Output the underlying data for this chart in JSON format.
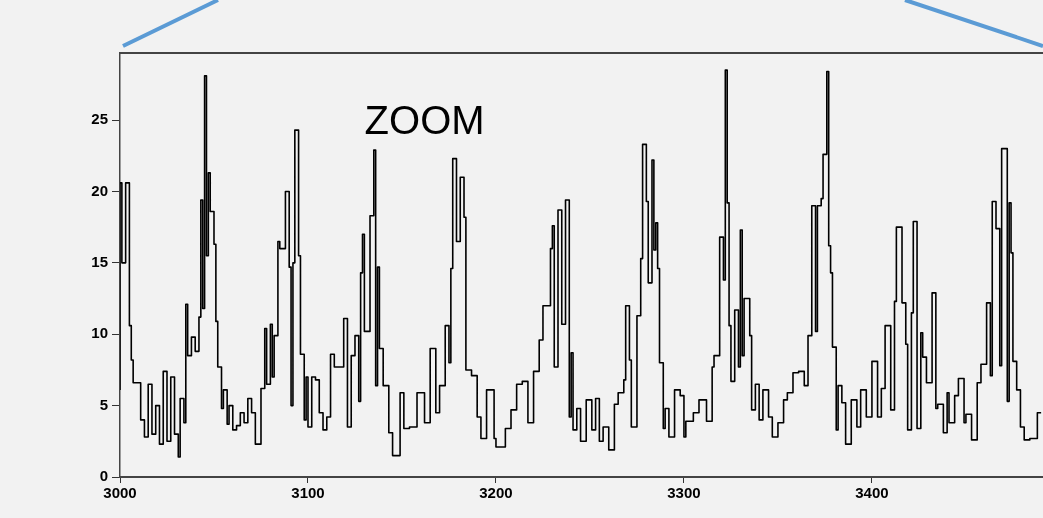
{
  "chart_data": {
    "type": "step",
    "color": "#000000",
    "grid": false,
    "legend": false,
    "xlim": [
      3000,
      3491
    ],
    "xticks": [
      3000,
      3100,
      3200,
      3300,
      3400
    ],
    "ylim": [
      0,
      29.7
    ],
    "yticks": [
      0,
      5,
      10,
      15,
      20,
      25
    ],
    "annotations": [
      "ZOOM"
    ],
    "x": [
      3000,
      3001,
      3003,
      3005,
      3006,
      3007,
      3009,
      3011,
      3013,
      3015,
      3017,
      3019,
      3021,
      3023,
      3025,
      3027,
      3029,
      3031,
      3032,
      3034,
      3035,
      3036,
      3038,
      3040,
      3042,
      3043,
      3044,
      3045,
      3046,
      3047,
      3048,
      3050,
      3051,
      3052,
      3054,
      3055,
      3057,
      3058,
      3060,
      3062,
      3064,
      3066,
      3068,
      3070,
      3072,
      3074,
      3075,
      3077,
      3078,
      3080,
      3081,
      3082,
      3084,
      3085,
      3088,
      3090,
      3091,
      3092,
      3093,
      3095,
      3096,
      3098,
      3099,
      3100,
      3102,
      3104,
      3106,
      3108,
      3110,
      3112,
      3114,
      3119,
      3121,
      3123,
      3125,
      3127,
      3128,
      3129,
      3130,
      3133,
      3135,
      3136,
      3137,
      3138,
      3140,
      3143,
      3145,
      3149,
      3151,
      3154,
      3158,
      3162,
      3165,
      3168,
      3170,
      3173,
      3175,
      3176,
      3177,
      3179,
      3181,
      3183,
      3184,
      3187,
      3190,
      3192,
      3195,
      3199,
      3200,
      3205,
      3208,
      3211,
      3214,
      3217,
      3220,
      3223,
      3225,
      3229,
      3230,
      3231,
      3233,
      3235,
      3237,
      3239,
      3240,
      3241,
      3243,
      3245,
      3248,
      3251,
      3253,
      3255,
      3257,
      3260,
      3263,
      3265,
      3268,
      3269,
      3271,
      3272,
      3275,
      3277,
      3278,
      3280,
      3281,
      3283,
      3284,
      3285,
      3286,
      3287,
      3289,
      3290,
      3292,
      3295,
      3298,
      3300,
      3301,
      3305,
      3308,
      3312,
      3315,
      3316,
      3319,
      3321,
      3322,
      3323,
      3324,
      3325,
      3327,
      3329,
      3330,
      3331,
      3332,
      3335,
      3336,
      3338,
      3340,
      3342,
      3345,
      3347,
      3350,
      3353,
      3355,
      3358,
      3361,
      3364,
      3366,
      3368,
      3370,
      3371,
      3373,
      3374,
      3376,
      3377,
      3378,
      3379,
      3381,
      3382,
      3384,
      3386,
      3389,
      3392,
      3394,
      3397,
      3400,
      3403,
      3405,
      3407,
      3410,
      3412,
      3413,
      3416,
      3418,
      3419,
      3421,
      3422,
      3424,
      3426,
      3427,
      3429,
      3432,
      3434,
      3435,
      3438,
      3440,
      3441,
      3444,
      3446,
      3449,
      3450,
      3453,
      3456,
      3458,
      3461,
      3463,
      3464,
      3466,
      3468,
      3469,
      3472,
      3473,
      3474,
      3475,
      3477,
      3479,
      3481,
      3484,
      3488,
      3490
    ],
    "values": [
      6.1,
      20.6,
      15,
      20.6,
      10.6,
      8.2,
      6.6,
      6.6,
      4,
      2.8,
      6.5,
      3,
      5,
      2.3,
      7.4,
      2.5,
      7,
      3,
      1.4,
      5.5,
      3.8,
      12.1,
      8.5,
      9.8,
      8.8,
      11.2,
      19.4,
      11.8,
      28.1,
      15.5,
      21.3,
      18.6,
      16.3,
      10.9,
      7.7,
      4.8,
      6.1,
      3.7,
      5,
      3.3,
      3.6,
      4.5,
      3.8,
      5.5,
      4.5,
      2.3,
      2.3,
      6.2,
      10.4,
      6.5,
      10.7,
      7,
      9.9,
      16.5,
      16,
      20,
      14.7,
      5,
      15,
      24.3,
      15.5,
      8.6,
      4,
      7,
      3.5,
      7,
      6.8,
      4.5,
      3.3,
      4.2,
      8.6,
      7.7,
      11.1,
      3.5,
      8.5,
      9.9,
      5.3,
      14.3,
      17,
      10.2,
      18.3,
      22.9,
      6.4,
      14.7,
      9,
      6.4,
      3.1,
      1.5,
      5.9,
      3.4,
      3.5,
      5.9,
      3.8,
      9,
      4.5,
      6.4,
      10.6,
      8,
      14.6,
      22.3,
      16.5,
      21,
      18.2,
      7.5,
      7.1,
      4.2,
      2.7,
      6.1,
      2.7,
      2.1,
      3.4,
      4.7,
      6.5,
      6.7,
      3.8,
      7.4,
      9.6,
      12,
      16,
      17.6,
      7.7,
      18.7,
      10.7,
      19.4,
      4.2,
      8.7,
      3.3,
      4.8,
      2.5,
      5.4,
      3.3,
      5.5,
      2.5,
      3.5,
      1.9,
      5.1,
      5.9,
      6.8,
      12,
      8.2,
      3.5,
      11.3,
      15.3,
      23.3,
      19.3,
      13.6,
      22.2,
      15.9,
      17.8,
      14.6,
      8,
      3.4,
      4.8,
      2.8,
      6.1,
      5.7,
      2.8,
      3.9,
      4.5,
      5.4,
      3.9,
      7.7,
      8.5,
      16.8,
      13.8,
      28.5,
      19.2,
      10.6,
      6.7,
      11.7,
      7.7,
      17.3,
      8.5,
      12.5,
      9.9,
      4.7,
      6.5,
      4,
      6.1,
      4.2,
      2.8,
      3.8,
      5.4,
      5.9,
      7.3,
      7.4,
      6.4,
      9.9,
      19,
      10.2,
      19,
      19.5,
      22.6,
      28.4,
      16.2,
      14.3,
      9.1,
      3.3,
      6.4,
      5.2,
      2.3,
      5.4,
      3.5,
      6.1,
      4.2,
      8.1,
      4.2,
      6.2,
      10.6,
      4.7,
      12.3,
      17.5,
      12.2,
      9.3,
      3.3,
      11.5,
      17.9,
      3.4,
      10.1,
      8.4,
      6.6,
      12.9,
      4.8,
      5.1,
      3.1,
      5.9,
      3.8,
      5.7,
      6.9,
      3.8,
      4.4,
      2.6,
      6.6,
      7.9,
      12.2,
      7.1,
      19.3,
      17.4,
      7.8,
      23,
      5.3,
      19.2,
      15.7,
      8.1,
      6.1,
      3.5,
      2.6,
      2.7,
      4.5
    ]
  }
}
